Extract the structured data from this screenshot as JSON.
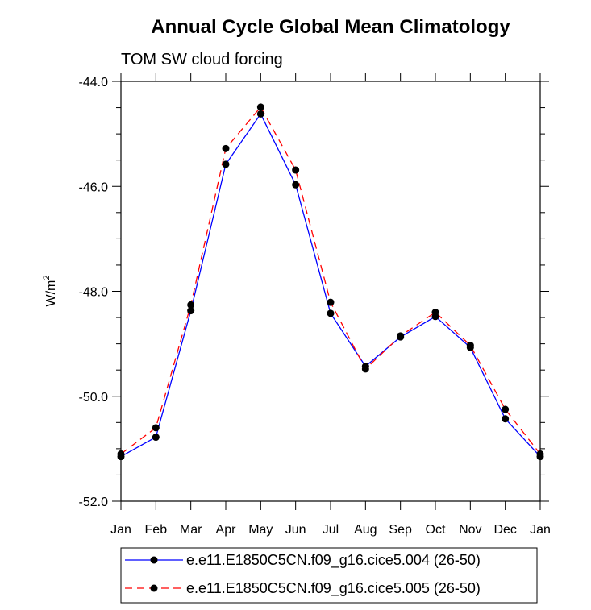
{
  "chart_data": {
    "type": "line",
    "title": "Annual Cycle Global Mean Climatology",
    "subtitle": "TOM SW cloud forcing",
    "xlabel": "",
    "ylabel": "W/m",
    "ylabel_superscript": "2",
    "categories": [
      "Jan",
      "Feb",
      "Mar",
      "Apr",
      "May",
      "Jun",
      "Jul",
      "Aug",
      "Sep",
      "Oct",
      "Nov",
      "Dec",
      "Jan"
    ],
    "ylim": [
      -52.0,
      -44.0
    ],
    "yticks": [
      -52.0,
      -50.0,
      -48.0,
      -46.0,
      -44.0
    ],
    "ytick_labels": [
      "-52.0",
      "-50.0",
      "-48.0",
      "-46.0",
      "-44.0"
    ],
    "grid": false,
    "legend_position": "bottom",
    "series": [
      {
        "name": "e.e11.E1850C5CN.f09_g16.cice5.004 (26-50)",
        "color": "#0000ff",
        "dash": "solid",
        "values": [
          -51.15,
          -50.78,
          -48.37,
          -45.58,
          -44.62,
          -45.97,
          -48.42,
          -49.43,
          -48.87,
          -48.48,
          -49.07,
          -50.43,
          -51.15
        ]
      },
      {
        "name": "e.e11.E1850C5CN.f09_g16.cice5.005 (26-50)",
        "color": "#ff0000",
        "dash": "dashed",
        "values": [
          -51.1,
          -50.6,
          -48.26,
          -45.28,
          -44.49,
          -45.69,
          -48.21,
          -49.48,
          -48.85,
          -48.4,
          -49.03,
          -50.25,
          -51.1
        ]
      }
    ]
  }
}
